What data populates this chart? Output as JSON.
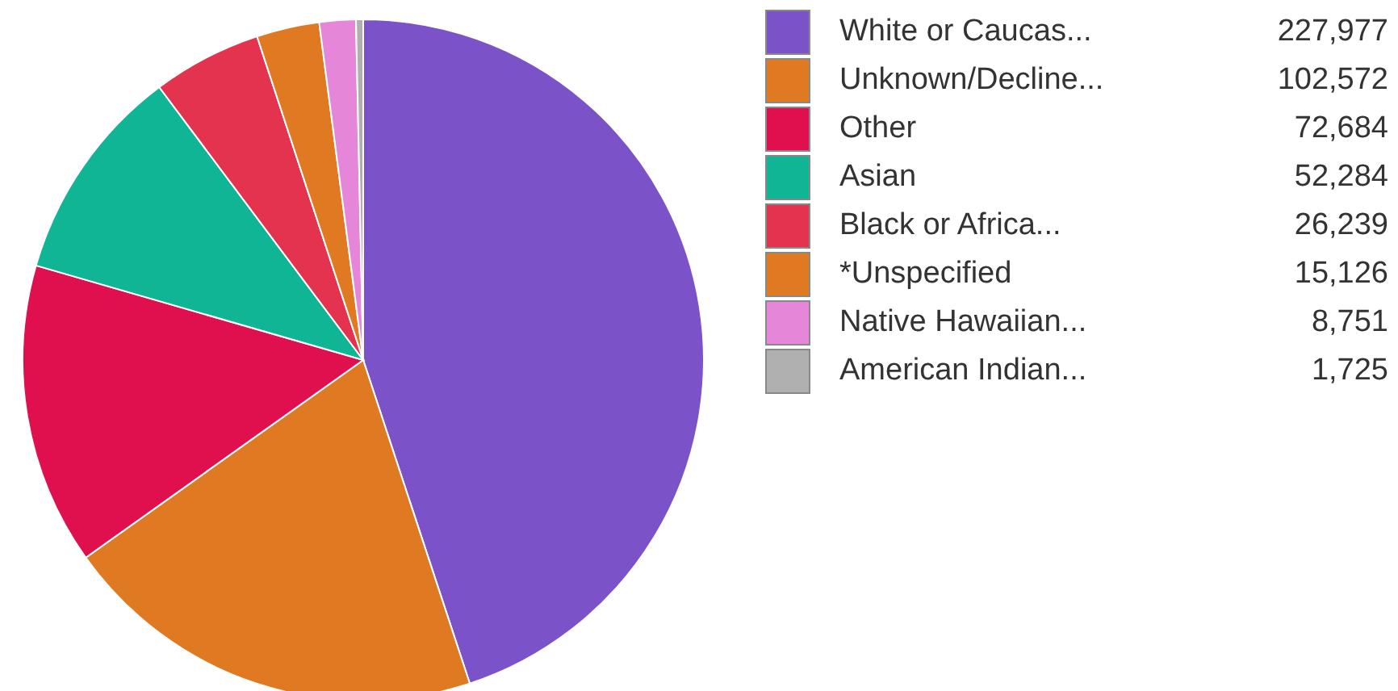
{
  "chart_data": {
    "type": "pie",
    "categories": [
      "White or Caucas...",
      "Unknown/Decline...",
      "Other",
      "Asian",
      "Black or Africa...",
      "*Unspecified",
      "Native Hawaiian...",
      "American Indian..."
    ],
    "values": [
      227977,
      102572,
      72684,
      52284,
      26239,
      15126,
      8751,
      1725
    ],
    "colors": [
      "#7b52c7",
      "#e07a22",
      "#e0104f",
      "#0fb595",
      "#e3334f",
      "#e07a22",
      "#e586d8",
      "#b0b0b0"
    ],
    "value_labels": [
      "227,977",
      "102,572",
      "72,684",
      "52,284",
      "26,239",
      "15,126",
      "8,751",
      "1,725"
    ],
    "legend": "top right"
  }
}
